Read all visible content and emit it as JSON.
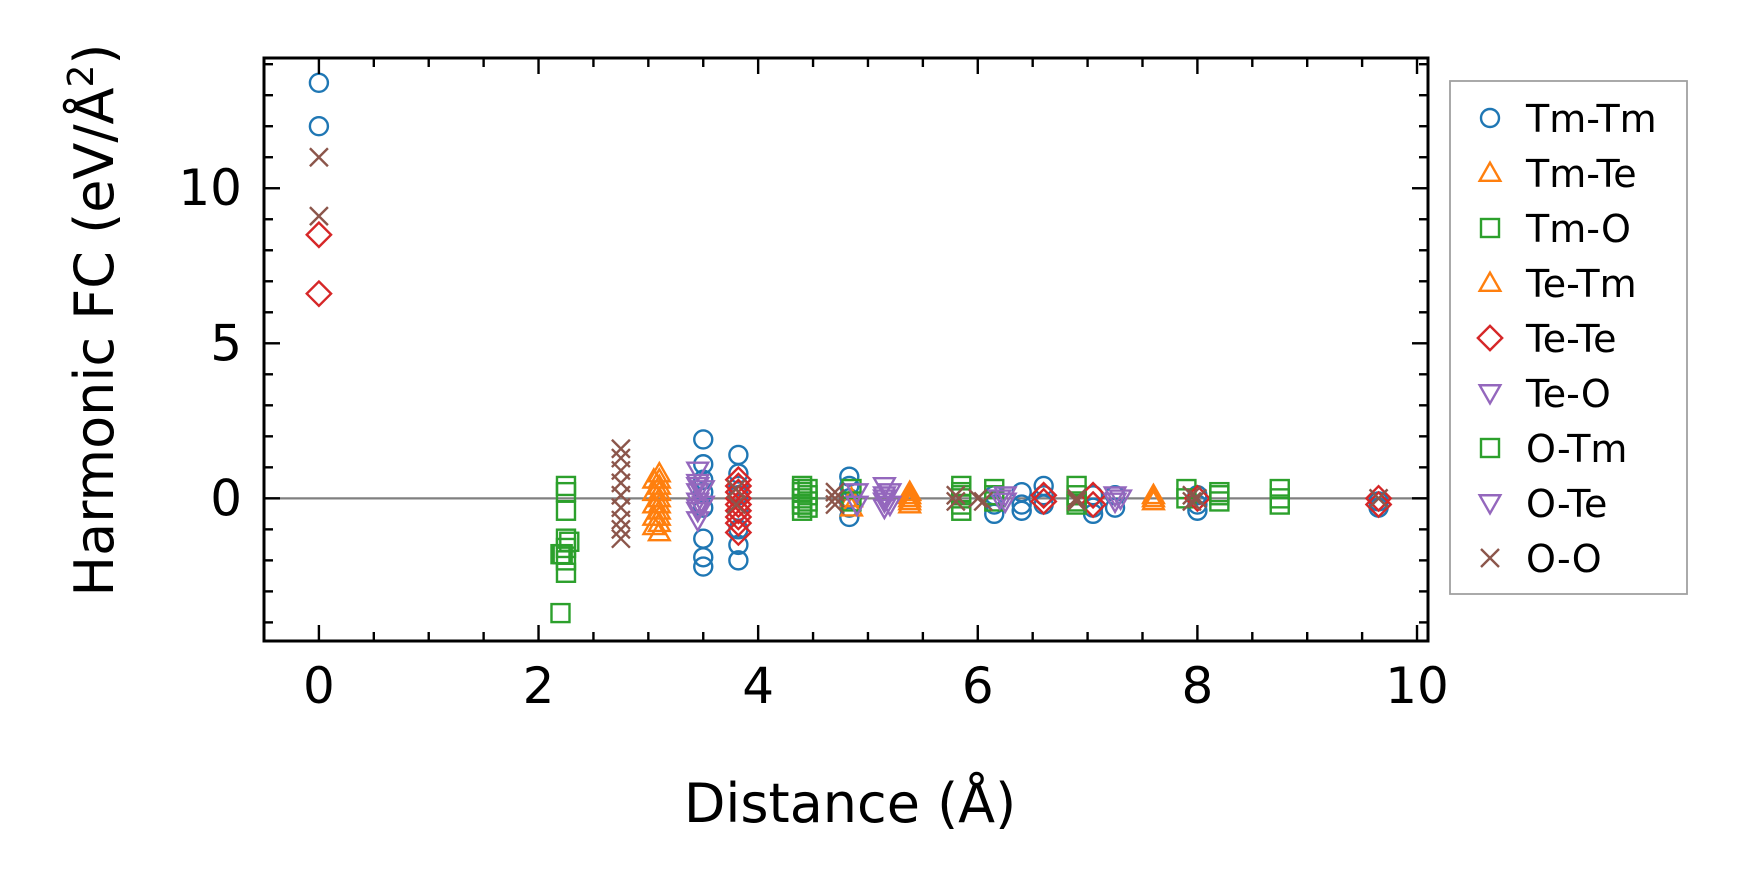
{
  "chart_data": {
    "type": "scatter",
    "title": "",
    "xlabel": "Distance (Å)",
    "ylabel_main": "Harmonic FC (eV/Å",
    "ylabel_sup": "2",
    "ylabel_close": ")",
    "xlim": [
      -0.5,
      10.1
    ],
    "ylim": [
      -4.6,
      14.2
    ],
    "x_ticks": [
      0,
      2,
      4,
      6,
      8,
      10
    ],
    "x_tick_labels": [
      "0",
      "2",
      "4",
      "6",
      "8",
      "10"
    ],
    "y_ticks": [
      0,
      5,
      10
    ],
    "y_tick_labels": [
      "0",
      "5",
      "10"
    ],
    "zero_line": true,
    "grid": false,
    "legend_position": "outside-right",
    "series": [
      {
        "name": "Tm-Tm",
        "marker": "circle",
        "color": "#1f77b4",
        "points": [
          [
            0,
            13.4
          ],
          [
            0,
            12.0
          ],
          [
            3.5,
            1.9
          ],
          [
            3.5,
            1.1
          ],
          [
            3.5,
            0.6
          ],
          [
            3.5,
            0.2
          ],
          [
            3.5,
            -0.3
          ],
          [
            3.5,
            -1.3
          ],
          [
            3.5,
            -1.9
          ],
          [
            3.5,
            -2.2
          ],
          [
            3.82,
            1.4
          ],
          [
            3.82,
            0.8
          ],
          [
            3.82,
            0.4
          ],
          [
            3.82,
            0.1
          ],
          [
            3.82,
            -0.4
          ],
          [
            3.82,
            -1.0
          ],
          [
            3.82,
            -1.5
          ],
          [
            3.82,
            -2.0
          ],
          [
            4.83,
            0.7
          ],
          [
            4.83,
            0.4
          ],
          [
            4.83,
            0.0
          ],
          [
            4.83,
            -0.3
          ],
          [
            4.83,
            -0.6
          ],
          [
            6.15,
            0.1
          ],
          [
            6.15,
            -0.2
          ],
          [
            6.15,
            -0.5
          ],
          [
            6.4,
            0.2
          ],
          [
            6.4,
            -0.2
          ],
          [
            6.4,
            -0.4
          ],
          [
            6.6,
            0.4
          ],
          [
            6.6,
            0.1
          ],
          [
            6.6,
            -0.2
          ],
          [
            7.05,
            0.1
          ],
          [
            7.05,
            -0.3
          ],
          [
            7.05,
            -0.5
          ],
          [
            7.25,
            0.1
          ],
          [
            7.25,
            -0.3
          ],
          [
            8.0,
            0.1
          ],
          [
            8.0,
            -0.2
          ],
          [
            8.0,
            -0.4
          ],
          [
            9.65,
            -0.1
          ],
          [
            9.65,
            -0.3
          ]
        ]
      },
      {
        "name": "Tm-Te",
        "marker": "triangle-up",
        "color": "#ff7f0e",
        "points": [
          [
            3.1,
            0.8
          ],
          [
            3.1,
            0.6
          ],
          [
            3.1,
            0.4
          ],
          [
            3.1,
            0.2
          ],
          [
            3.1,
            0.0
          ],
          [
            3.1,
            -0.2
          ],
          [
            3.1,
            -0.4
          ],
          [
            3.1,
            -0.6
          ],
          [
            3.1,
            -0.8
          ],
          [
            3.1,
            -1.1
          ],
          [
            4.85,
            0.0
          ],
          [
            4.85,
            -0.3
          ],
          [
            5.38,
            0.2
          ],
          [
            5.38,
            0.0
          ],
          [
            5.38,
            -0.2
          ],
          [
            7.6,
            0.0
          ],
          [
            7.6,
            -0.1
          ]
        ]
      },
      {
        "name": "Tm-O",
        "marker": "square",
        "color": "#2ca02c",
        "points": [
          [
            2.2,
            -3.7
          ],
          [
            2.2,
            -1.8
          ],
          [
            2.25,
            0.4
          ],
          [
            2.25,
            0.2
          ],
          [
            2.25,
            -0.4
          ],
          [
            2.25,
            -1.3
          ],
          [
            2.25,
            -1.6
          ],
          [
            2.25,
            -2.0
          ],
          [
            2.25,
            -2.4
          ],
          [
            4.4,
            0.4
          ],
          [
            4.4,
            0.2
          ],
          [
            4.4,
            0.0
          ],
          [
            4.4,
            -0.2
          ],
          [
            4.4,
            -0.4
          ],
          [
            4.45,
            0.3
          ],
          [
            4.45,
            0.1
          ],
          [
            4.45,
            -0.1
          ],
          [
            4.45,
            -0.3
          ],
          [
            4.85,
            0.3
          ],
          [
            4.85,
            -0.1
          ],
          [
            5.85,
            0.4
          ],
          [
            5.85,
            0.2
          ],
          [
            5.85,
            0.0
          ],
          [
            5.85,
            -0.2
          ],
          [
            5.85,
            -0.4
          ],
          [
            6.15,
            0.3
          ],
          [
            6.15,
            0.1
          ],
          [
            6.15,
            -0.1
          ],
          [
            6.9,
            0.4
          ],
          [
            6.9,
            0.1
          ],
          [
            6.9,
            -0.2
          ],
          [
            7.9,
            0.3
          ],
          [
            7.9,
            0.0
          ],
          [
            8.2,
            0.2
          ],
          [
            8.2,
            -0.1
          ],
          [
            8.75,
            0.3
          ],
          [
            8.75,
            0.0
          ],
          [
            8.75,
            -0.2
          ]
        ]
      },
      {
        "name": "Te-Tm",
        "marker": "triangle-up",
        "color": "#ff7f0e",
        "points": [
          [
            3.05,
            0.6
          ],
          [
            3.05,
            0.2
          ],
          [
            3.05,
            -0.2
          ],
          [
            3.05,
            -0.6
          ],
          [
            3.05,
            -0.9
          ],
          [
            5.38,
            0.1
          ],
          [
            5.38,
            -0.1
          ],
          [
            7.6,
            0.1
          ]
        ]
      },
      {
        "name": "Te-Te",
        "marker": "diamond",
        "color": "#d62728",
        "points": [
          [
            0,
            8.5
          ],
          [
            0,
            6.6
          ],
          [
            3.82,
            0.6
          ],
          [
            3.82,
            0.4
          ],
          [
            3.82,
            0.2
          ],
          [
            3.82,
            0.0
          ],
          [
            3.82,
            -0.2
          ],
          [
            3.82,
            -0.4
          ],
          [
            3.82,
            -0.6
          ],
          [
            3.82,
            -0.8
          ],
          [
            3.82,
            -1.1
          ],
          [
            6.6,
            0.1
          ],
          [
            6.6,
            -0.1
          ],
          [
            7.05,
            0.1
          ],
          [
            7.05,
            -0.2
          ],
          [
            8.0,
            0.0
          ],
          [
            9.65,
            0.0
          ],
          [
            9.65,
            -0.2
          ]
        ]
      },
      {
        "name": "Te-O",
        "marker": "triangle-down",
        "color": "#9467bd",
        "points": [
          [
            3.45,
            0.9
          ],
          [
            3.45,
            0.5
          ],
          [
            3.45,
            0.2
          ],
          [
            3.45,
            -0.1
          ],
          [
            3.45,
            -0.4
          ],
          [
            3.45,
            -0.7
          ],
          [
            3.5,
            0.3
          ],
          [
            3.5,
            -0.2
          ],
          [
            5.15,
            0.4
          ],
          [
            5.15,
            0.1
          ],
          [
            5.15,
            -0.1
          ],
          [
            5.15,
            -0.3
          ],
          [
            5.2,
            0.2
          ],
          [
            5.2,
            -0.2
          ],
          [
            6.25,
            0.1
          ],
          [
            6.25,
            -0.1
          ],
          [
            7.25,
            0.1
          ],
          [
            7.25,
            -0.1
          ]
        ]
      },
      {
        "name": "O-Tm",
        "marker": "square",
        "color": "#2ca02c",
        "points": [
          [
            2.22,
            -1.8
          ],
          [
            2.28,
            -1.4
          ],
          [
            4.4,
            0.3
          ],
          [
            4.4,
            -0.2
          ],
          [
            5.85,
            0.1
          ],
          [
            6.9,
            -0.1
          ],
          [
            8.2,
            0.1
          ]
        ]
      },
      {
        "name": "O-Te",
        "marker": "triangle-down",
        "color": "#9467bd",
        "points": [
          [
            3.45,
            0.4
          ],
          [
            3.45,
            -0.3
          ],
          [
            4.9,
            0.2
          ],
          [
            4.9,
            -0.2
          ],
          [
            5.15,
            0.0
          ],
          [
            6.2,
            0.0
          ],
          [
            7.3,
            0.0
          ]
        ]
      },
      {
        "name": "O-O",
        "marker": "x",
        "color": "#8c564b",
        "points": [
          [
            0,
            11.0
          ],
          [
            0,
            9.1
          ],
          [
            2.75,
            1.6
          ],
          [
            2.75,
            1.3
          ],
          [
            2.75,
            0.9
          ],
          [
            2.75,
            0.5
          ],
          [
            2.75,
            0.1
          ],
          [
            2.75,
            -0.3
          ],
          [
            2.75,
            -0.7
          ],
          [
            2.75,
            -1.0
          ],
          [
            2.75,
            -1.3
          ],
          [
            3.8,
            0.3
          ],
          [
            3.8,
            -0.2
          ],
          [
            4.7,
            0.2
          ],
          [
            4.7,
            0.0
          ],
          [
            4.7,
            -0.2
          ],
          [
            5.8,
            0.1
          ],
          [
            5.8,
            -0.1
          ],
          [
            6.0,
            0.0
          ],
          [
            6.05,
            -0.1
          ],
          [
            6.9,
            0.0
          ],
          [
            6.9,
            -0.1
          ],
          [
            7.95,
            0.1
          ],
          [
            7.95,
            -0.1
          ],
          [
            8.0,
            0.0
          ],
          [
            9.65,
            0.0
          ]
        ]
      }
    ]
  }
}
